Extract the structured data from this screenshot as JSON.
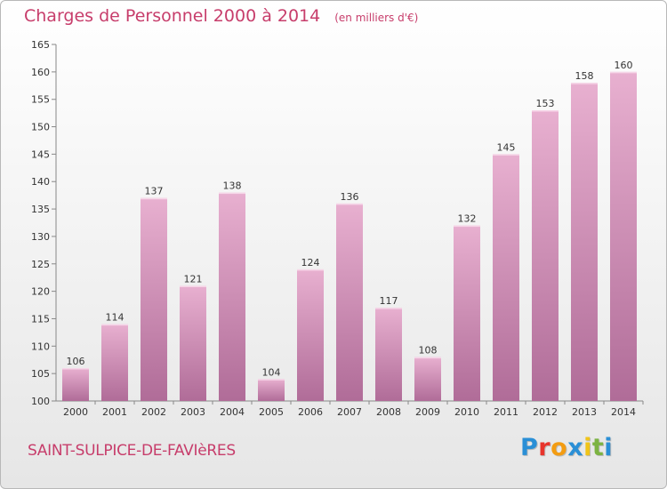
{
  "header": {
    "title": "Charges de Personnel 2000 à 2014",
    "subtitle": "(en milliers d'€)"
  },
  "footer": {
    "place": "SAINT-SULPICE-DE-FAVIèRES",
    "logo_letters": [
      "P",
      "r",
      "o",
      "x",
      "i",
      "t",
      "i"
    ],
    "logo_colors": [
      "#2a8fd6",
      "#e8342c",
      "#f39c12",
      "#2a8fd6",
      "#f0c419",
      "#7cb342",
      "#2a8fd6"
    ]
  },
  "colors": {
    "bar_light": "#e8b0d0",
    "bar_dark": "#b06c98",
    "title": "#c73d6b"
  },
  "chart_data": {
    "type": "bar",
    "categories": [
      "2000",
      "2001",
      "2002",
      "2003",
      "2004",
      "2005",
      "2006",
      "2007",
      "2008",
      "2009",
      "2010",
      "2011",
      "2012",
      "2013",
      "2014"
    ],
    "values": [
      106,
      114,
      137,
      121,
      138,
      104,
      124,
      136,
      117,
      108,
      132,
      145,
      153,
      158,
      160
    ],
    "ylim": [
      100,
      165
    ],
    "yticks": [
      100,
      105,
      110,
      115,
      120,
      125,
      130,
      135,
      140,
      145,
      150,
      155,
      160,
      165
    ],
    "grid": false,
    "title": "Charges de Personnel 2000 à 2014",
    "subtitle": "(en milliers d'€)"
  }
}
